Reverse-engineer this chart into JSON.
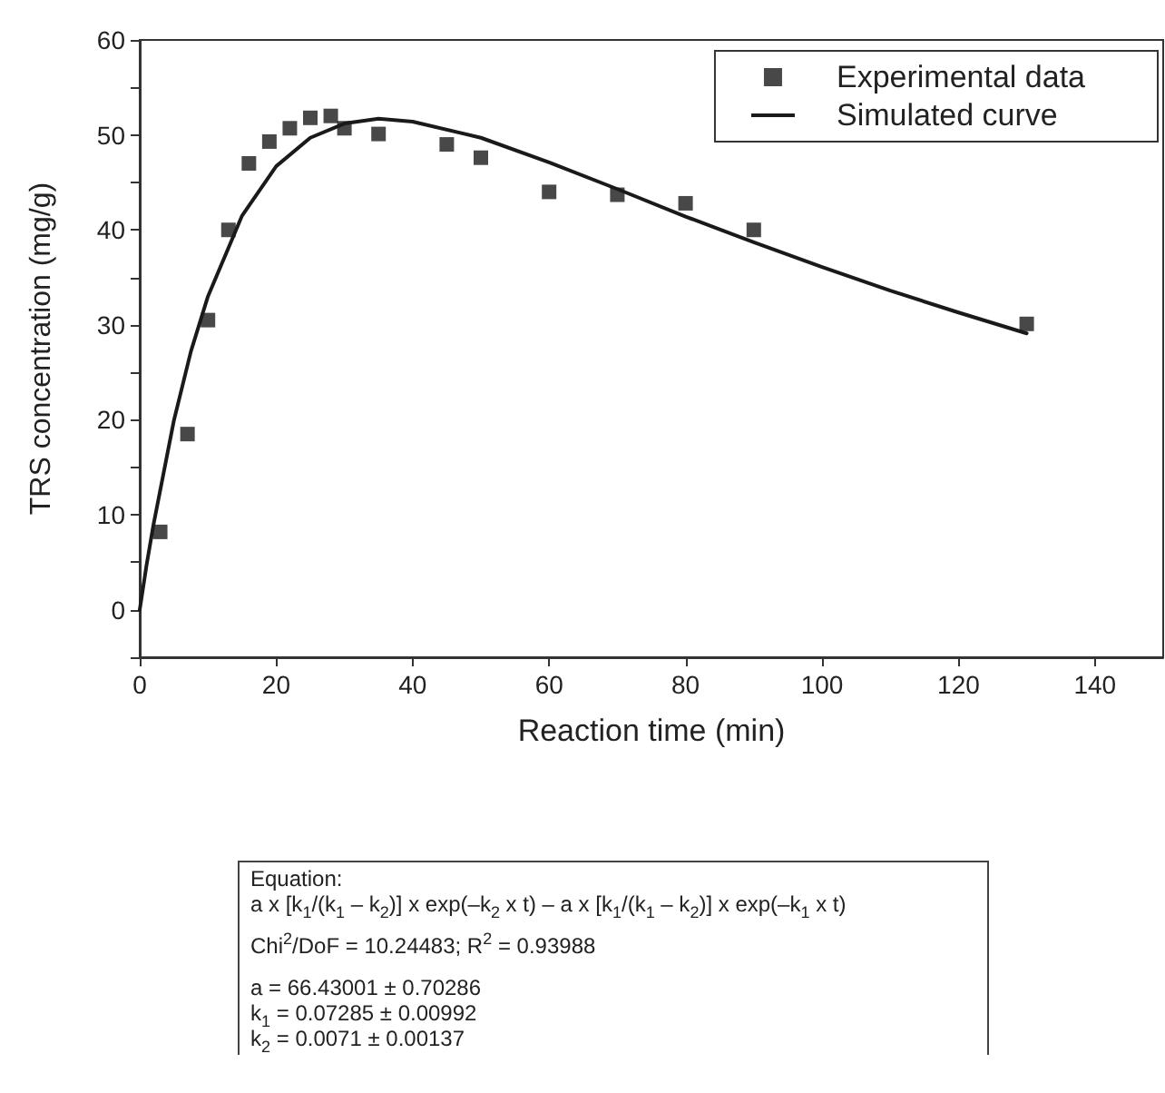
{
  "chart_data": {
    "type": "scatter",
    "xlabel": "Reaction time (min)",
    "ylabel": "TRS concentration (mg/g)",
    "xlim": [
      0,
      150
    ],
    "xticks": [
      0,
      20,
      40,
      60,
      80,
      100,
      120,
      140
    ],
    "ylim": [
      -5,
      60
    ],
    "yticks": [
      {
        "value": -5,
        "label": null
      },
      0,
      {
        "value": 5,
        "label": null
      },
      10,
      {
        "value": 15,
        "label": null
      },
      20,
      {
        "value": 25,
        "label": null
      },
      30,
      {
        "value": 35,
        "label": null
      },
      40,
      {
        "value": 45,
        "label": null
      },
      50,
      {
        "value": 55,
        "label": null
      },
      60
    ],
    "grid": false,
    "legend": "top right",
    "series": [
      {
        "name": "Experimental data",
        "marker": "square",
        "color": "#1a1a1a",
        "x": [
          3,
          7,
          10,
          13,
          16,
          19,
          22,
          25,
          28,
          30,
          35,
          45,
          50,
          60,
          70,
          80,
          90,
          130
        ],
        "values": [
          8.2,
          18.5,
          30.5,
          40,
          47,
          49.3,
          50.7,
          51.8,
          52,
          50.7,
          50.1,
          49,
          47.6,
          44,
          43.7,
          42.8,
          40,
          30.1
        ]
      },
      {
        "name": "Simulated curve",
        "type": "line",
        "marker": "none",
        "line_style": "solid",
        "color": "#1a1a1a",
        "x": [
          0,
          1,
          2,
          5,
          7.5,
          10,
          15,
          20,
          25,
          30,
          35,
          40,
          50,
          60,
          70,
          80,
          90,
          100,
          110,
          120,
          130
        ],
        "values": [
          0,
          4.7,
          8.9,
          19.9,
          27.2,
          33,
          41.5,
          46.7,
          49.7,
          51.2,
          51.7,
          51.4,
          49.7,
          47.1,
          44.3,
          41.4,
          38.7,
          36.1,
          33.6,
          31.3,
          29.1
        ]
      }
    ],
    "annotations": [
      "Equation:\na x [k$_{1}$/(k$_{1}$ – k$_{2}$)] x exp(–k$_{2}$ x t) – a x [k$_{1}$/(k$_{1}$ – k$_{2}$)] x exp(–k$_{1}$ x t)",
      "Chi$^{2}$/DoF = 10.24483; R$^{2}$ = 0.93988",
      "a = 66.43001 ± 0.70286\nk$_{1}$ = 0.07285 ± 0.00992\nk$_{2}$ = 0.0071 ± 0.00137"
    ]
  }
}
